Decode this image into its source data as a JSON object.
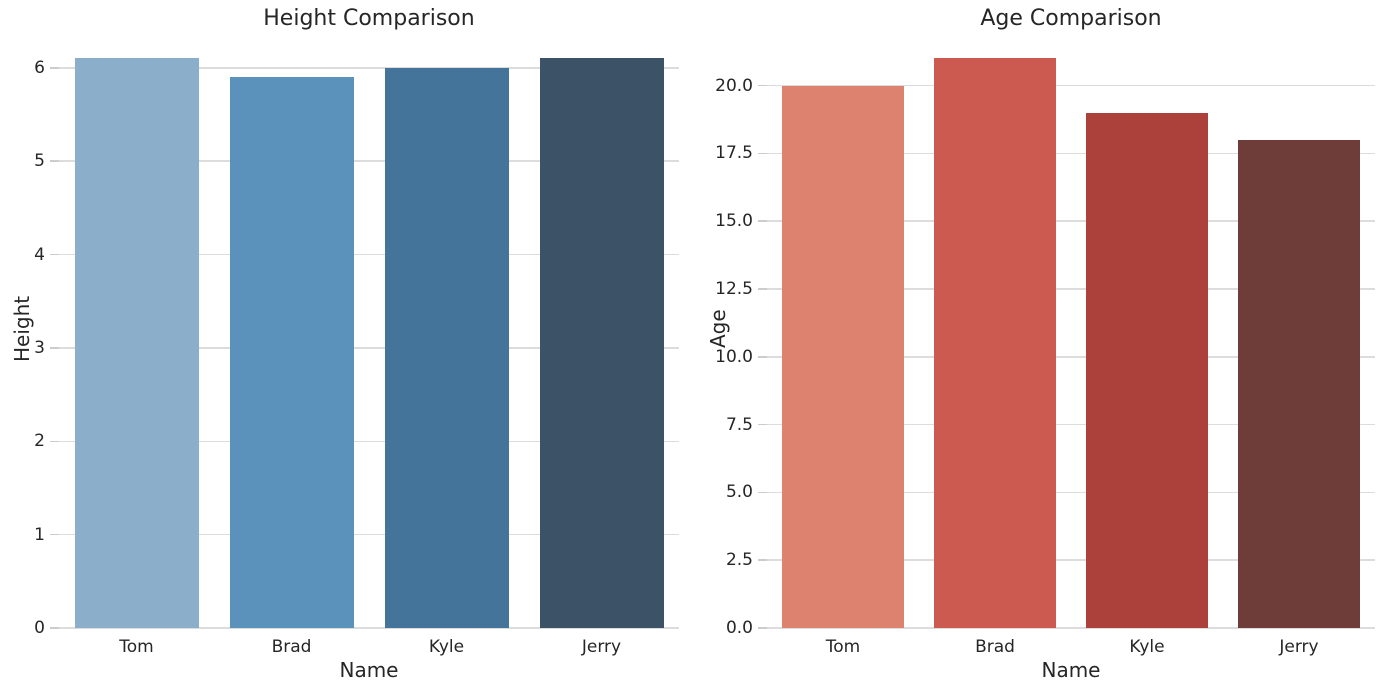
{
  "style": {
    "background": "#ffffff",
    "grid_color": "#dcdcdc",
    "tick_color": "#cccccc",
    "text_color": "#262626"
  },
  "chart_data": [
    {
      "type": "bar",
      "title": "Height Comparison",
      "categories": [
        "Tom",
        "Brad",
        "Kyle",
        "Jerry"
      ],
      "values": [
        6.1,
        5.9,
        6.0,
        6.1
      ],
      "xlabel": "Name",
      "ylabel": "Height",
      "ylim": [
        0,
        6.405
      ],
      "ytick_values": [
        0,
        1,
        2,
        3,
        4,
        5,
        6
      ],
      "ytick_labels": [
        "0",
        "1",
        "2",
        "3",
        "4",
        "5",
        "6"
      ],
      "bar_colors": [
        "#8BAFCB",
        "#5B92BC",
        "#45749B",
        "#3C5266"
      ],
      "grid": true,
      "legend": null
    },
    {
      "type": "bar",
      "title": "Age Comparison",
      "categories": [
        "Tom",
        "Brad",
        "Kyle",
        "Jerry"
      ],
      "values": [
        20,
        21,
        19,
        18
      ],
      "xlabel": "Name",
      "ylabel": "Age",
      "ylim": [
        0,
        22.05
      ],
      "ytick_values": [
        0,
        2.5,
        5,
        7.5,
        10,
        12.5,
        15,
        17.5,
        20
      ],
      "ytick_labels": [
        "0.0",
        "2.5",
        "5.0",
        "7.5",
        "10.0",
        "12.5",
        "15.0",
        "17.5",
        "20.0"
      ],
      "bar_colors": [
        "#DE8270",
        "#CD5A50",
        "#AC413C",
        "#6E3C39"
      ],
      "grid": true,
      "legend": null
    }
  ]
}
